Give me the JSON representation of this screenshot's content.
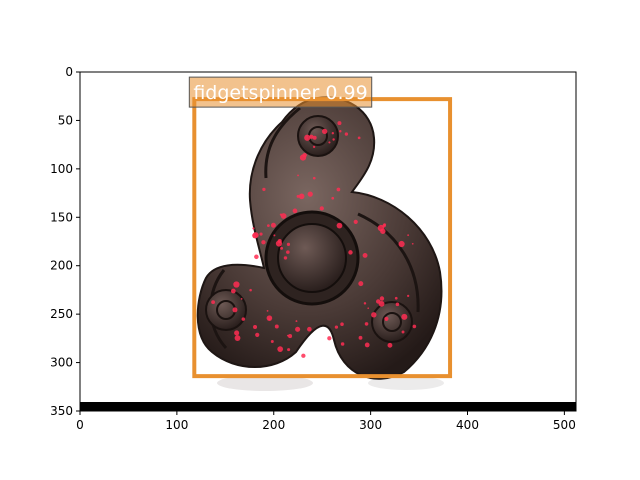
{
  "chart_data": {
    "type": "image",
    "image_size": [
      512,
      350
    ],
    "xticks": [
      0,
      100,
      200,
      300,
      400,
      500
    ],
    "yticks": [
      0,
      50,
      100,
      150,
      200,
      250,
      300,
      350
    ],
    "xlim": [
      0,
      512
    ],
    "ylim": [
      350,
      0
    ],
    "detections": [
      {
        "class": "fidgetspinner",
        "score": "0.99",
        "label": "fidgetspinner 0.99",
        "box": {
          "x1": 118,
          "y1": 28,
          "x2": 382,
          "y2": 314
        },
        "color": "#e8902f"
      }
    ]
  },
  "colors": {
    "spinner_body": "#4a3a36",
    "speckle": "#ff2d52",
    "axis": "#000000"
  }
}
